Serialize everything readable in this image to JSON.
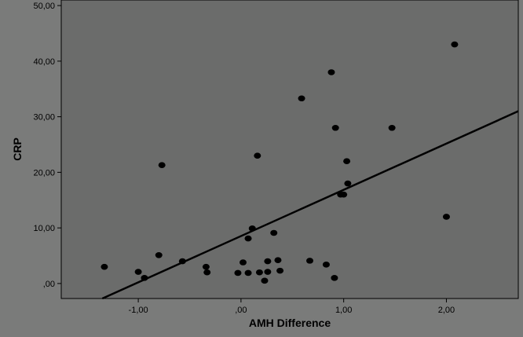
{
  "colors": {
    "background": "#7a7b7a",
    "plot_area": "#6b6c6b",
    "axis": "#000000",
    "point": "#000000",
    "fit_line": "#000000",
    "text": "#000000"
  },
  "chart_data": {
    "type": "scatter",
    "xlabel": "AMH Difference",
    "ylabel": "CRP",
    "xlim": [
      -1.75,
      2.7
    ],
    "ylim": [
      -2.7,
      51
    ],
    "x_ticks": [
      {
        "value": -1,
        "label": "-1,00"
      },
      {
        "value": 0,
        "label": ",00"
      },
      {
        "value": 1,
        "label": "1,00"
      },
      {
        "value": 2,
        "label": "2,00"
      }
    ],
    "y_ticks": [
      {
        "value": 0,
        "label": ",00"
      },
      {
        "value": 10,
        "label": "10,00"
      },
      {
        "value": 20,
        "label": "20,00"
      },
      {
        "value": 30,
        "label": "30,00"
      },
      {
        "value": 40,
        "label": "40,00"
      },
      {
        "value": 50,
        "label": "50,00"
      }
    ],
    "grid": false,
    "legend": "none",
    "points": [
      {
        "x": -1.33,
        "y": 3.0
      },
      {
        "x": -1.0,
        "y": 2.1
      },
      {
        "x": -0.94,
        "y": 1.0
      },
      {
        "x": -0.8,
        "y": 5.1
      },
      {
        "x": -0.77,
        "y": 21.3
      },
      {
        "x": -0.57,
        "y": 4.0
      },
      {
        "x": -0.34,
        "y": 3.0
      },
      {
        "x": -0.33,
        "y": 2.0
      },
      {
        "x": -0.03,
        "y": 1.9
      },
      {
        "x": 0.02,
        "y": 3.8
      },
      {
        "x": 0.07,
        "y": 8.1
      },
      {
        "x": 0.07,
        "y": 1.9
      },
      {
        "x": 0.11,
        "y": 9.9
      },
      {
        "x": 0.16,
        "y": 23.0
      },
      {
        "x": 0.18,
        "y": 2.0
      },
      {
        "x": 0.23,
        "y": 0.5
      },
      {
        "x": 0.26,
        "y": 2.1
      },
      {
        "x": 0.26,
        "y": 4.0
      },
      {
        "x": 0.32,
        "y": 9.1
      },
      {
        "x": 0.36,
        "y": 4.2
      },
      {
        "x": 0.38,
        "y": 2.3
      },
      {
        "x": 0.59,
        "y": 33.3
      },
      {
        "x": 0.67,
        "y": 4.1
      },
      {
        "x": 0.83,
        "y": 3.4
      },
      {
        "x": 0.88,
        "y": 38.0
      },
      {
        "x": 0.91,
        "y": 1.0
      },
      {
        "x": 0.92,
        "y": 28.0
      },
      {
        "x": 0.97,
        "y": 16.0
      },
      {
        "x": 1.0,
        "y": 16.0
      },
      {
        "x": 1.03,
        "y": 22.0
      },
      {
        "x": 1.04,
        "y": 18.0
      },
      {
        "x": 1.47,
        "y": 28.0
      },
      {
        "x": 2.0,
        "y": 12.0
      },
      {
        "x": 2.08,
        "y": 43.0
      }
    ],
    "fit_line": {
      "x": [
        -1.35,
        2.7
      ],
      "y": [
        -2.7,
        31.0
      ]
    }
  }
}
